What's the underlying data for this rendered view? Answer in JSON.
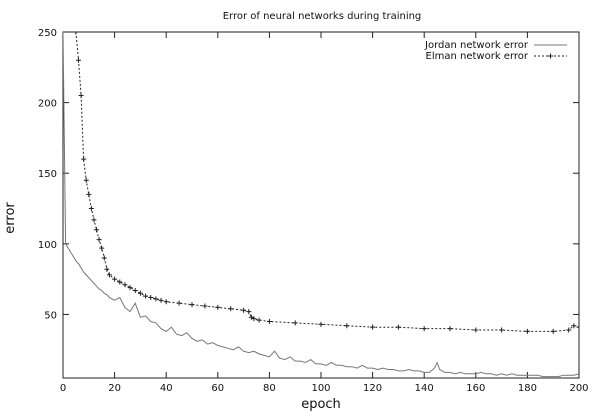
{
  "chart_data": {
    "type": "line",
    "title": "Error of neural networks during training",
    "xlabel": "epoch",
    "ylabel": "error",
    "xlim": [
      0,
      200
    ],
    "ylim": [
      5,
      250
    ],
    "xticks": [
      0,
      20,
      40,
      60,
      80,
      100,
      120,
      140,
      160,
      180,
      200
    ],
    "yticks": [
      50,
      100,
      150,
      200,
      250
    ],
    "grid": false,
    "legend_position": "top-right",
    "series": [
      {
        "name": "Jordan network error",
        "style": "solid",
        "color": "#777777",
        "x": [
          0,
          1,
          2,
          3,
          4,
          5,
          6,
          7,
          8,
          9,
          10,
          11,
          12,
          13,
          14,
          15,
          16,
          17,
          18,
          19,
          20,
          22,
          24,
          26,
          28,
          30,
          32,
          34,
          36,
          38,
          40,
          42,
          44,
          46,
          48,
          50,
          52,
          54,
          56,
          58,
          60,
          62,
          64,
          66,
          68,
          70,
          72,
          74,
          76,
          78,
          80,
          82,
          84,
          86,
          88,
          90,
          92,
          94,
          96,
          98,
          100,
          102,
          104,
          106,
          108,
          110,
          112,
          114,
          116,
          118,
          120,
          122,
          124,
          126,
          128,
          130,
          132,
          134,
          136,
          138,
          140,
          142,
          144,
          145,
          146,
          148,
          150,
          152,
          154,
          156,
          158,
          160,
          162,
          164,
          166,
          168,
          170,
          172,
          174,
          176,
          178,
          180,
          182,
          184,
          186,
          188,
          190,
          192,
          194,
          196,
          198,
          200
        ],
        "y": [
          250,
          100,
          97,
          94,
          91,
          88,
          86,
          83,
          80,
          78,
          76,
          74,
          72,
          70,
          68,
          67,
          65,
          64,
          62,
          61,
          60,
          62,
          55,
          52,
          58,
          48,
          49,
          45,
          44,
          40,
          38,
          41,
          36,
          35,
          37,
          33,
          31,
          32,
          29,
          30,
          28,
          27,
          26,
          25,
          27,
          24,
          23,
          24,
          22,
          21,
          20,
          24,
          19,
          18,
          20,
          17,
          17,
          16,
          18,
          15,
          15,
          14,
          16,
          14,
          14,
          13,
          13,
          12,
          14,
          12,
          12,
          11,
          12,
          11,
          11,
          10,
          10,
          11,
          10,
          10,
          9,
          9,
          12,
          16,
          11,
          9,
          9,
          8,
          9,
          8,
          8,
          8,
          9,
          8,
          8,
          7,
          8,
          7,
          8,
          7,
          7,
          7,
          7,
          7,
          6,
          6,
          6,
          6,
          7,
          7,
          7,
          8
        ]
      },
      {
        "name": "Elman network error",
        "style": "dashed",
        "color": "#222222",
        "x": [
          5,
          6,
          7,
          8,
          9,
          10,
          11,
          12,
          13,
          14,
          15,
          16,
          17,
          18,
          20,
          22,
          24,
          26,
          28,
          30,
          32,
          34,
          36,
          38,
          40,
          45,
          50,
          55,
          60,
          65,
          70,
          72,
          73,
          74,
          76,
          80,
          90,
          100,
          110,
          120,
          130,
          140,
          150,
          160,
          170,
          180,
          190,
          196,
          198,
          200
        ],
        "y": [
          250,
          230,
          205,
          160,
          145,
          135,
          125,
          117,
          110,
          103,
          97,
          90,
          82,
          78,
          75,
          73,
          71,
          69,
          67,
          65,
          63,
          62,
          61,
          60,
          59,
          58,
          57,
          56,
          55,
          54,
          53,
          52,
          48,
          47,
          46,
          45,
          44,
          43,
          42,
          41,
          41,
          40,
          40,
          39,
          39,
          38,
          38,
          39,
          42,
          41
        ]
      }
    ]
  }
}
